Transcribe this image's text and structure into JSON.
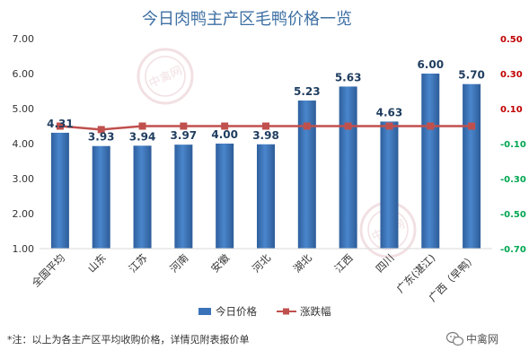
{
  "chart_data": {
    "type": "bar",
    "title": "今日肉鸭主产区毛鸭价格一览",
    "categories": [
      "全国平均",
      "山东",
      "江苏",
      "河南",
      "安徽",
      "河北",
      "湖北",
      "江西",
      "四川",
      "广东(湛江)",
      "广西（早鸭）"
    ],
    "series": [
      {
        "name": "今日价格",
        "type": "bar",
        "axis": "left",
        "values": [
          4.31,
          3.93,
          3.94,
          3.97,
          4.0,
          3.98,
          5.23,
          5.63,
          4.63,
          6.0,
          5.7
        ],
        "labels": [
          "4.31",
          "3.93",
          "3.94",
          "3.97",
          "4.00",
          "3.98",
          "5.23",
          "5.63",
          "4.63",
          "6.00",
          "5.70"
        ],
        "color": "#3a73ba"
      },
      {
        "name": "涨跌幅",
        "type": "line",
        "axis": "right",
        "values": [
          0.0,
          -0.02,
          0.0,
          0.0,
          0.0,
          0.0,
          0.0,
          0.0,
          0.0,
          0.0,
          0.0
        ],
        "color": "#c0504d"
      }
    ],
    "ylim": [
      1.0,
      7.0
    ],
    "yticks": [
      "1.00",
      "2.00",
      "3.00",
      "4.00",
      "5.00",
      "6.00",
      "7.00"
    ],
    "y2lim": [
      -0.7,
      0.5
    ],
    "y2ticks": [
      "-0.70",
      "-0.50",
      "-0.30",
      "-0.10",
      "0.10",
      "0.30",
      "0.50"
    ],
    "y2_colors": {
      "positive": "#c00000",
      "negative": "#00a651"
    },
    "legend_position": "bottom",
    "grid": false
  },
  "footnote": "*注：以上为各主产区平均收购价格，详情见附表报价单",
  "watermark": "中禽网",
  "brand": {
    "name": "中禽网",
    "icon": "wechat-icon"
  }
}
